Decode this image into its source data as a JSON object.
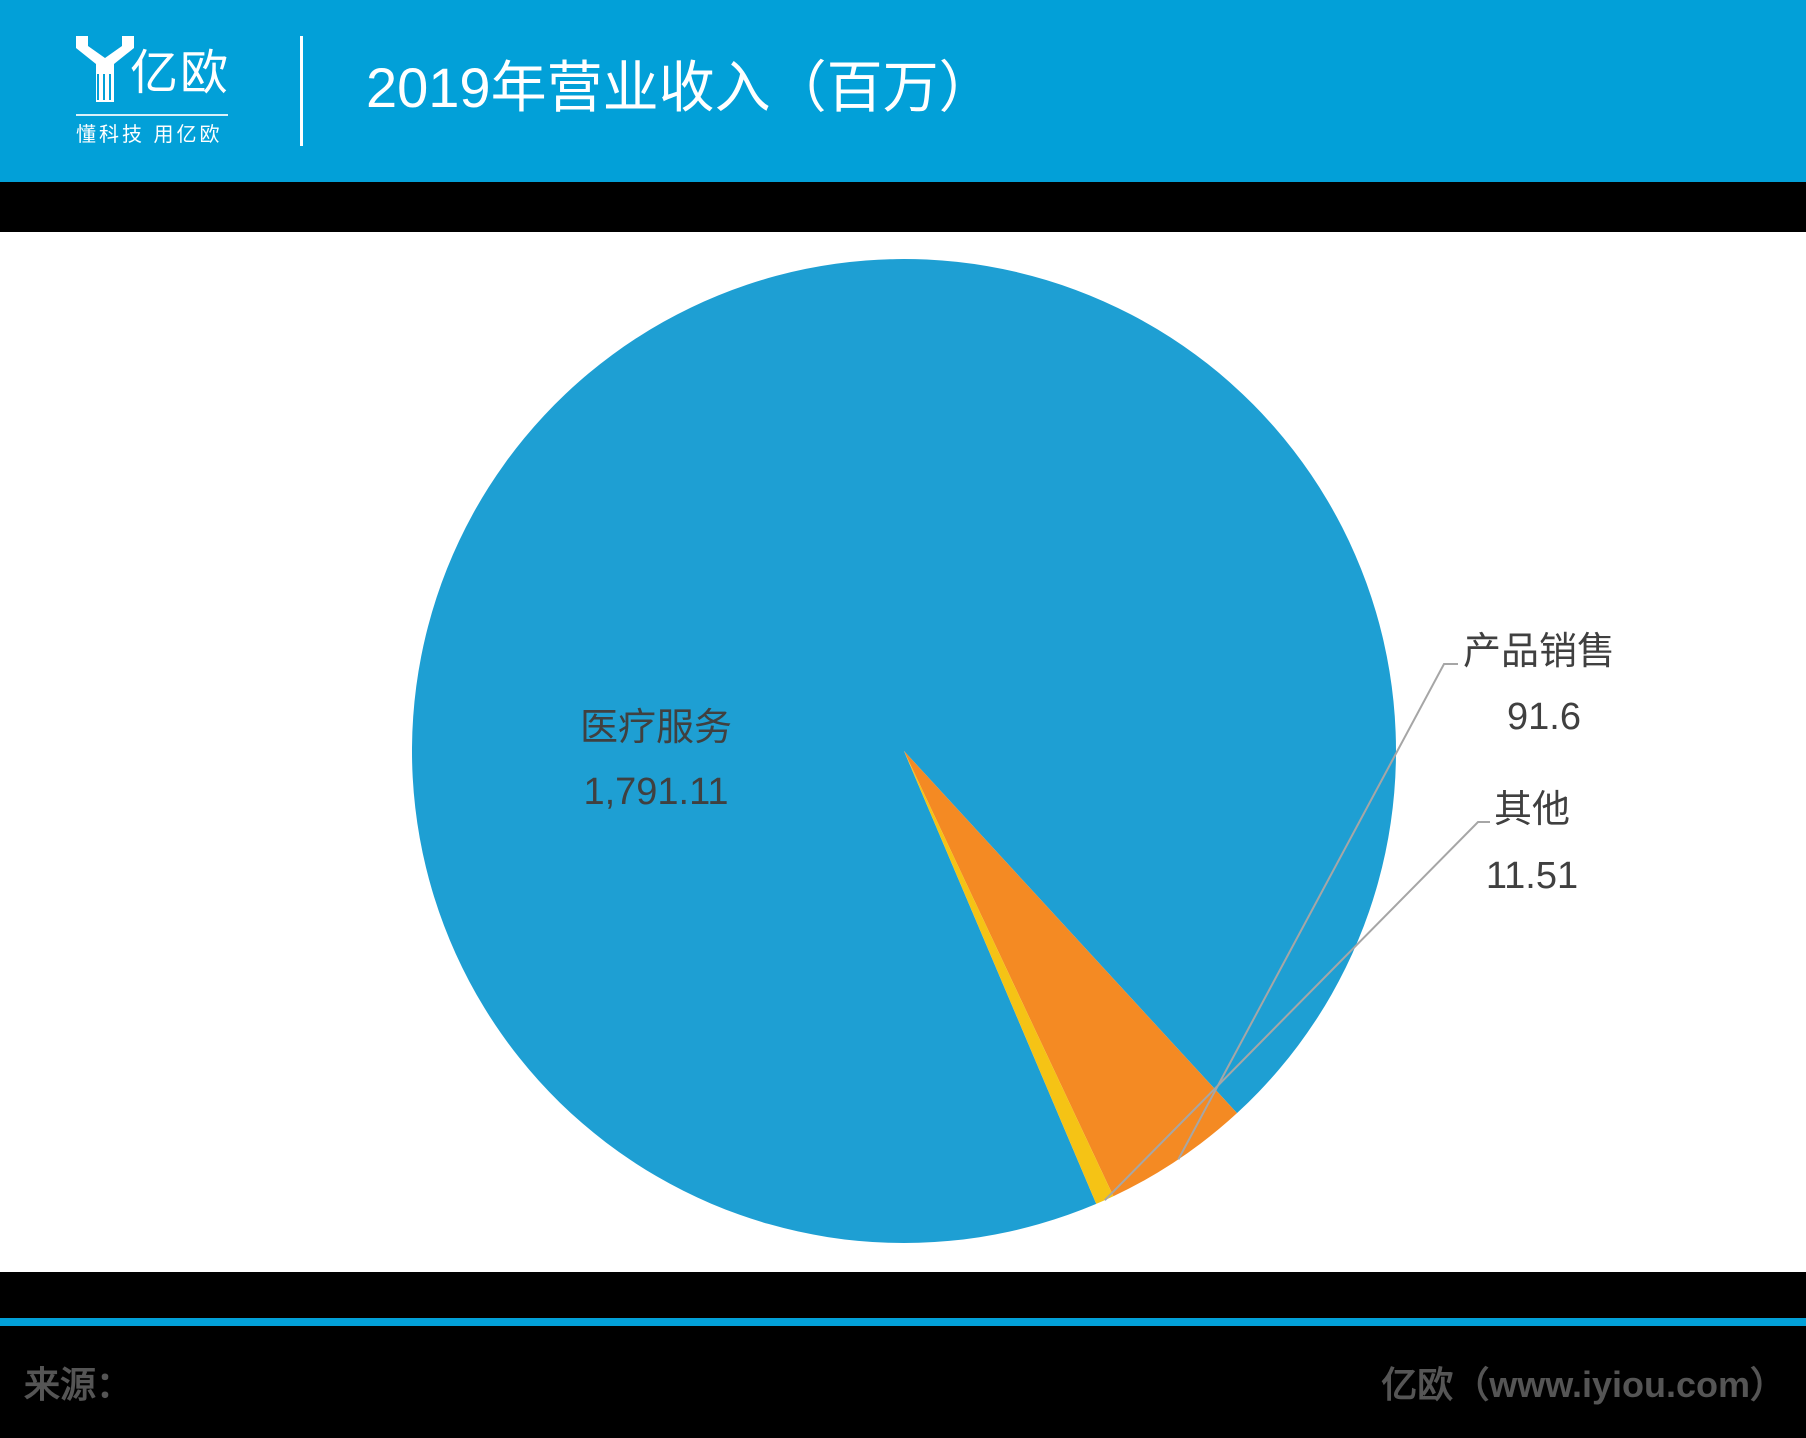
{
  "header": {
    "logo_name": "亿欧",
    "logo_slogan": "懂科技 用亿欧",
    "title": "2019年营业收入（百万）"
  },
  "colors": {
    "header_bg": "#02a0d8",
    "series": [
      "#1e9fd3",
      "#f48a23",
      "#f5c315"
    ],
    "leader_line": "#a6a6a6",
    "label_text": "#404040"
  },
  "chart_data": {
    "type": "pie",
    "title": "2019年营业收入（百万）",
    "slices": [
      {
        "label": "医疗服务",
        "value": 1791.11,
        "display": "1,791.11"
      },
      {
        "label": "产品销售",
        "value": 91.6,
        "display": "91.6"
      },
      {
        "label": "其他",
        "value": 11.51,
        "display": "11.51"
      }
    ]
  },
  "footer": {
    "source": "来源：",
    "credit": "亿欧（www.iyiou.com）"
  }
}
